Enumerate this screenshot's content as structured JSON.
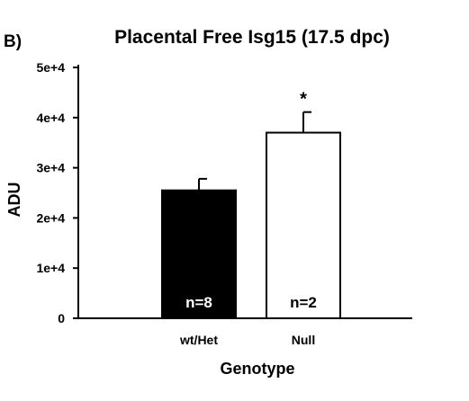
{
  "panel_label": "B)",
  "chart_data": {
    "type": "bar",
    "title": "Placental Free Isg15 (17.5 dpc)",
    "xlabel": "Genotype",
    "ylabel": "ADU",
    "ylim": [
      0,
      50000
    ],
    "yticks": [
      0,
      10000,
      20000,
      30000,
      40000,
      50000
    ],
    "ytick_labels": [
      "0",
      "1e+4",
      "2e+4",
      "3e+4",
      "4e+4",
      "5e+4"
    ],
    "categories": [
      "wt/Het",
      "Null"
    ],
    "values": [
      25500,
      37000
    ],
    "errors": [
      2300,
      4100
    ],
    "bar_labels": [
      "n=8",
      "n=2"
    ],
    "significance": [
      "",
      "*"
    ],
    "bar_colors": [
      "#000000",
      "#ffffff"
    ],
    "bar_label_colors": [
      "#ffffff",
      "#000000"
    ],
    "grid": false
  }
}
